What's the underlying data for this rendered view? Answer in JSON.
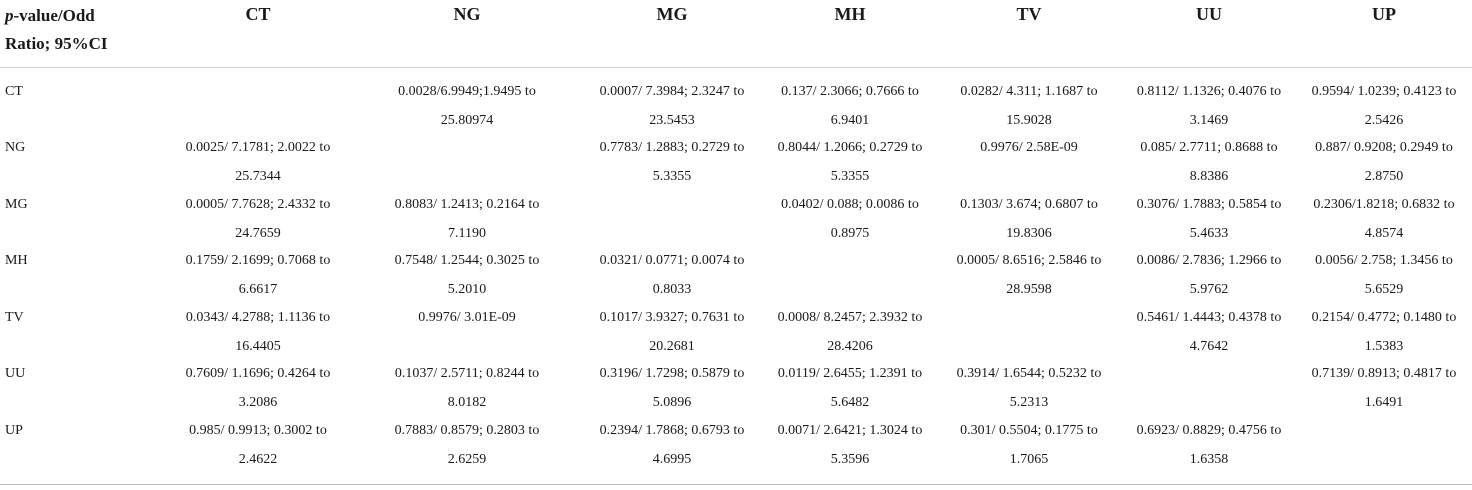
{
  "table": {
    "corner_header": {
      "line1_italic": "p",
      "line1_rest": "-value/Odd",
      "line2": "Ratio; 95%CI"
    },
    "columns": [
      "CT",
      "NG",
      "MG",
      "MH",
      "TV",
      "UU",
      "UP"
    ],
    "rows": [
      {
        "label": "CT",
        "cells": [
          [
            "",
            ""
          ],
          [
            "0.0028/6.9949;1.9495 to",
            "25.80974"
          ],
          [
            "0.0007/ 7.3984; 2.3247 to",
            "23.5453"
          ],
          [
            "0.137/ 2.3066; 0.7666 to",
            "6.9401"
          ],
          [
            "0.0282/ 4.311; 1.1687 to",
            "15.9028"
          ],
          [
            "0.8112/ 1.1326; 0.4076 to",
            "3.1469"
          ],
          [
            "0.9594/ 1.0239; 0.4123 to",
            "2.5426"
          ]
        ]
      },
      {
        "label": "NG",
        "cells": [
          [
            "0.0025/ 7.1781; 2.0022 to",
            "25.7344"
          ],
          [
            "",
            ""
          ],
          [
            "0.7783/ 1.2883; 0.2729 to",
            "5.3355"
          ],
          [
            "0.8044/ 1.2066; 0.2729 to",
            "5.3355"
          ],
          [
            "0.9976/ 2.58E-09",
            ""
          ],
          [
            "0.085/ 2.7711; 0.8688 to",
            "8.8386"
          ],
          [
            "0.887/ 0.9208; 0.2949 to",
            "2.8750"
          ]
        ]
      },
      {
        "label": "MG",
        "cells": [
          [
            "0.0005/ 7.7628; 2.4332 to",
            "24.7659"
          ],
          [
            "0.8083/ 1.2413; 0.2164 to",
            "7.1190"
          ],
          [
            "",
            ""
          ],
          [
            "0.0402/ 0.088; 0.0086 to",
            "0.8975"
          ],
          [
            "0.1303/ 3.674; 0.6807 to",
            "19.8306"
          ],
          [
            "0.3076/ 1.7883; 0.5854 to",
            "5.4633"
          ],
          [
            "0.2306/1.8218; 0.6832 to",
            "4.8574"
          ]
        ]
      },
      {
        "label": "MH",
        "cells": [
          [
            "0.1759/ 2.1699; 0.7068 to",
            "6.6617"
          ],
          [
            "0.7548/ 1.2544; 0.3025 to",
            "5.2010"
          ],
          [
            "0.0321/ 0.0771; 0.0074 to",
            "0.8033"
          ],
          [
            "",
            ""
          ],
          [
            "0.0005/ 8.6516; 2.5846 to",
            "28.9598"
          ],
          [
            "0.0086/ 2.7836; 1.2966 to",
            "5.9762"
          ],
          [
            "0.0056/ 2.758; 1.3456 to",
            "5.6529"
          ]
        ]
      },
      {
        "label": "TV",
        "cells": [
          [
            "0.0343/ 4.2788; 1.1136 to",
            "16.4405"
          ],
          [
            "0.9976/ 3.01E-09",
            ""
          ],
          [
            "0.1017/ 3.9327; 0.7631 to",
            "20.2681"
          ],
          [
            "0.0008/ 8.2457; 2.3932 to",
            "28.4206"
          ],
          [
            "",
            ""
          ],
          [
            "0.5461/ 1.4443; 0.4378 to",
            "4.7642"
          ],
          [
            "0.2154/ 0.4772; 0.1480 to",
            "1.5383"
          ]
        ]
      },
      {
        "label": "UU",
        "cells": [
          [
            "0.7609/ 1.1696; 0.4264 to",
            "3.2086"
          ],
          [
            "0.1037/ 2.5711; 0.8244 to",
            "8.0182"
          ],
          [
            "0.3196/ 1.7298; 0.5879 to",
            "5.0896"
          ],
          [
            "0.0119/ 2.6455; 1.2391 to",
            "5.6482"
          ],
          [
            "0.3914/ 1.6544; 0.5232 to",
            "5.2313"
          ],
          [
            "",
            ""
          ],
          [
            "0.7139/ 0.8913; 0.4817 to",
            "1.6491"
          ]
        ]
      },
      {
        "label": "UP",
        "cells": [
          [
            "0.985/ 0.9913; 0.3002 to",
            "2.4622"
          ],
          [
            "0.7883/ 0.8579; 0.2803 to",
            "2.6259"
          ],
          [
            "0.2394/ 1.7868; 0.6793 to",
            "4.6995"
          ],
          [
            "0.0071/ 2.6421; 1.3024 to",
            "5.3596"
          ],
          [
            "0.301/ 0.5504; 0.1775 to",
            "1.7065"
          ],
          [
            "0.6923/ 0.8829; 0.4756 to",
            "1.6358"
          ],
          [
            "",
            ""
          ]
        ]
      }
    ]
  }
}
